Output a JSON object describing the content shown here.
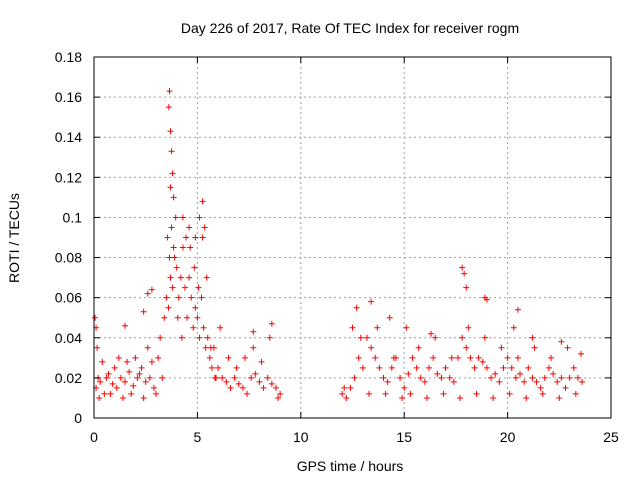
{
  "chart_data": {
    "type": "scatter",
    "title": "Day 226 of 2017, Rate Of TEC Index for receiver rogm",
    "xlabel": "GPS time / hours",
    "ylabel": "ROTI / TECUs",
    "xlim": [
      0,
      25
    ],
    "ylim": [
      0,
      0.18
    ],
    "xticks": [
      "0",
      "5",
      "10",
      "15",
      "20",
      "25"
    ],
    "yticks": [
      "0",
      "0.02",
      "0.04",
      "0.06",
      "0.08",
      "0.1",
      "0.12",
      "0.14",
      "0.16",
      "0.18"
    ],
    "grid": true,
    "marker": "+",
    "color": "#ff0000",
    "series": [
      {
        "x": [
          0.1,
          0.2,
          0.3,
          0.5,
          0.7,
          0.9,
          1.1,
          1.3,
          1.5,
          1.7,
          1.9,
          2.1,
          2.3,
          2.5,
          2.7,
          2.9,
          3.1,
          3.2,
          3.4,
          3.5,
          3.6,
          3.7,
          3.8,
          3.9,
          4.0,
          4.1,
          4.2,
          4.3,
          4.4,
          4.5,
          4.6,
          4.7,
          4.8,
          4.9,
          5.0,
          5.1,
          5.2,
          5.3,
          5.4,
          5.5,
          5.6,
          5.7,
          5.8,
          5.9,
          6.0,
          6.2,
          6.4,
          6.6,
          6.8,
          7.0,
          7.2,
          7.4,
          7.6,
          7.8,
          8.0,
          8.2,
          8.4,
          8.6,
          8.8,
          9.0,
          0.15,
          0.25,
          0.4,
          0.6,
          0.8,
          1.0,
          1.2,
          1.4,
          1.6,
          1.8,
          2.0,
          2.2,
          2.4,
          2.6,
          2.8,
          3.0,
          3.3,
          3.55,
          3.65,
          3.75,
          3.85,
          3.95,
          4.05,
          4.25,
          4.45,
          4.65,
          4.85,
          5.05,
          5.25,
          5.45,
          5.65,
          5.85,
          6.1,
          6.5,
          6.9,
          7.3,
          7.7,
          8.1,
          8.5,
          8.9,
          3.65,
          3.62,
          3.7,
          3.75,
          3.8,
          3.7,
          3.85,
          4.3,
          4.6,
          4.9,
          5.1,
          5.25,
          5.35,
          1.5,
          2.4,
          2.6,
          2.8,
          0.05,
          0.1,
          7.7,
          8.6
        ],
        "y": [
          0.015,
          0.02,
          0.018,
          0.012,
          0.022,
          0.017,
          0.015,
          0.02,
          0.018,
          0.023,
          0.016,
          0.02,
          0.025,
          0.018,
          0.02,
          0.015,
          0.03,
          0.04,
          0.05,
          0.06,
          0.055,
          0.07,
          0.065,
          0.08,
          0.075,
          0.06,
          0.07,
          0.085,
          0.065,
          0.05,
          0.07,
          0.06,
          0.045,
          0.055,
          0.05,
          0.04,
          0.06,
          0.045,
          0.035,
          0.04,
          0.03,
          0.025,
          0.035,
          0.02,
          0.025,
          0.02,
          0.018,
          0.015,
          0.02,
          0.017,
          0.015,
          0.012,
          0.02,
          0.022,
          0.018,
          0.015,
          0.02,
          0.017,
          0.015,
          0.012,
          0.035,
          0.01,
          0.028,
          0.02,
          0.012,
          0.025,
          0.03,
          0.01,
          0.028,
          0.012,
          0.03,
          0.022,
          0.01,
          0.035,
          0.028,
          0.012,
          0.02,
          0.09,
          0.08,
          0.095,
          0.085,
          0.1,
          0.05,
          0.04,
          0.09,
          0.085,
          0.075,
          0.065,
          0.09,
          0.07,
          0.035,
          0.02,
          0.045,
          0.03,
          0.025,
          0.03,
          0.035,
          0.028,
          0.04,
          0.01,
          0.163,
          0.155,
          0.143,
          0.133,
          0.122,
          0.115,
          0.11,
          0.1,
          0.095,
          0.09,
          0.1,
          0.108,
          0.095,
          0.046,
          0.053,
          0.062,
          0.064,
          0.05,
          0.045,
          0.043,
          0.047
        ]
      },
      {
        "x": [
          12.0,
          12.2,
          12.4,
          12.6,
          12.8,
          13.0,
          13.2,
          13.4,
          13.6,
          13.8,
          14.0,
          14.2,
          14.4,
          14.6,
          14.8,
          15.0,
          15.2,
          15.4,
          15.6,
          15.8,
          16.0,
          16.2,
          16.4,
          16.6,
          16.8,
          17.0,
          17.2,
          17.4,
          17.6,
          17.8,
          18.0,
          18.2,
          18.4,
          18.6,
          18.8,
          19.0,
          19.2,
          19.4,
          19.6,
          19.8,
          20.0,
          20.2,
          20.4,
          20.6,
          20.8,
          21.0,
          21.2,
          21.4,
          21.6,
          21.8,
          22.0,
          22.2,
          22.4,
          22.6,
          22.8,
          23.0,
          23.2,
          23.4,
          23.6,
          12.1,
          12.5,
          12.9,
          13.3,
          13.7,
          14.1,
          14.5,
          14.9,
          15.3,
          15.7,
          16.1,
          16.5,
          16.9,
          17.3,
          17.7,
          18.1,
          18.5,
          18.9,
          19.3,
          19.7,
          20.1,
          20.5,
          20.9,
          21.3,
          21.7,
          22.1,
          22.5,
          22.9,
          23.3,
          23.55,
          12.7,
          13.4,
          14.3,
          15.1,
          16.3,
          17.8,
          17.9,
          18.0,
          18.9,
          19.0,
          20.3,
          20.5,
          21.2,
          22.6
        ],
        "y": [
          0.012,
          0.01,
          0.015,
          0.02,
          0.03,
          0.025,
          0.04,
          0.035,
          0.03,
          0.025,
          0.02,
          0.018,
          0.025,
          0.03,
          0.02,
          0.015,
          0.022,
          0.03,
          0.025,
          0.02,
          0.018,
          0.025,
          0.03,
          0.022,
          0.02,
          0.025,
          0.02,
          0.018,
          0.03,
          0.04,
          0.035,
          0.03,
          0.025,
          0.03,
          0.028,
          0.025,
          0.02,
          0.022,
          0.018,
          0.025,
          0.03,
          0.025,
          0.02,
          0.022,
          0.018,
          0.025,
          0.02,
          0.018,
          0.015,
          0.02,
          0.025,
          0.022,
          0.018,
          0.02,
          0.015,
          0.02,
          0.025,
          0.02,
          0.018,
          0.015,
          0.045,
          0.04,
          0.012,
          0.045,
          0.012,
          0.03,
          0.01,
          0.012,
          0.035,
          0.01,
          0.04,
          0.012,
          0.03,
          0.01,
          0.045,
          0.012,
          0.04,
          0.01,
          0.035,
          0.012,
          0.03,
          0.01,
          0.035,
          0.012,
          0.03,
          0.01,
          0.035,
          0.012,
          0.032,
          0.055,
          0.058,
          0.05,
          0.045,
          0.042,
          0.075,
          0.072,
          0.065,
          0.06,
          0.059,
          0.045,
          0.054,
          0.04,
          0.038
        ]
      }
    ]
  }
}
